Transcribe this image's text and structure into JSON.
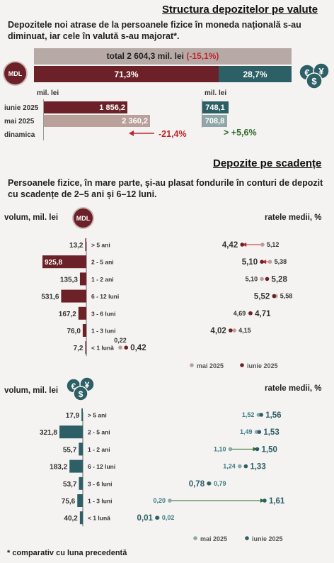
{
  "colors": {
    "mdl": "#6b2127",
    "mdl_light": "#b9a09b",
    "fx": "#2d5f66",
    "fx_light": "#8fa7a8",
    "neg": "#c0272d",
    "pos": "#2c6b2f",
    "gray_bar": "#b7aaa6"
  },
  "section1": {
    "title": "Structura depozitelor pe valute",
    "text": "Depozitele noi atrase de la persoanele fizice în moneda națională s-au diminuat, iar cele în valută s-au majorat*.",
    "total_label": "total 2 604,3 mil. lei",
    "total_change": "(-15,1%)",
    "mdl_share": "71,3%",
    "fx_share": "28,7%",
    "mdl_badge": "MDL",
    "mil_lei_left": "mil. lei",
    "mil_lei_right": "mil. lei",
    "row_labels": [
      "iunie 2025",
      "mai 2025",
      "dinamica"
    ],
    "mdl_june": "1 856,2",
    "mdl_may": "2 360,2",
    "mdl_dyn": "-21,4%",
    "fx_june": "748,1",
    "fx_may": "708,8",
    "fx_dyn": "> +5,6%"
  },
  "section2": {
    "title": "Depozite pe scadențe",
    "text": "Persoanele fizice, în mare parte, și-au plasat fondurile în conturi de depozit cu scadențe de 2–5 ani și 6–12 luni.",
    "volume_label": "volum, mil. lei",
    "rates_label": "ratele medii, %",
    "legend_may": "mai 2025",
    "legend_june": "iunie 2025"
  },
  "chart_data": [
    {
      "type": "bar",
      "title": "MDL volum, mil. lei",
      "categories": [
        "> 5 ani",
        "2 - 5 ani",
        "1 - 2 ani",
        "6 - 12 luni",
        "3 - 6 luni",
        "1 - 3 luni",
        "< 1 lună"
      ],
      "values": [
        13.2,
        925.8,
        135.3,
        531.6,
        167.2,
        76.0,
        7.2
      ],
      "value_labels": [
        "13,2",
        "925,8",
        "135,3",
        "531,6",
        "167,2",
        "76,0",
        "7,2"
      ]
    },
    {
      "type": "scatter",
      "title": "MDL ratele medii, %",
      "categories": [
        "> 5 ani",
        "2 - 5 ani",
        "1 - 2 ani",
        "6 - 12 luni",
        "3 - 6 luni",
        "1 - 3 luni",
        "< 1 lună"
      ],
      "series": [
        {
          "name": "mai 2025",
          "values": [
            5.12,
            5.38,
            5.1,
            5.58,
            4.69,
            4.15,
            0.22
          ],
          "labels": [
            "5,12",
            "5,38",
            "5,10",
            "5,58",
            "4,69",
            "4,15",
            "0,22"
          ]
        },
        {
          "name": "iunie 2025",
          "values": [
            4.42,
            5.1,
            5.28,
            5.52,
            4.71,
            4.02,
            0.42
          ],
          "labels": [
            "4,42",
            "5,10",
            "5,28",
            "5,52",
            "4,71",
            "4,02",
            "0,42"
          ]
        }
      ]
    },
    {
      "type": "bar",
      "title": "Valută volum, mil. lei",
      "categories": [
        "> 5 ani",
        "2 - 5 ani",
        "1 - 2 ani",
        "6 - 12 luni",
        "3 - 6 luni",
        "1 - 3 luni",
        "< 1 lună"
      ],
      "values": [
        17.9,
        321.8,
        55.7,
        183.2,
        53.7,
        75.6,
        40.2
      ],
      "value_labels": [
        "17,9",
        "321,8",
        "55,7",
        "183,2",
        "53,7",
        "75,6",
        "40,2"
      ]
    },
    {
      "type": "scatter",
      "title": "Valută ratele medii, %",
      "categories": [
        "> 5 ani",
        "2 - 5 ani",
        "1 - 2 ani",
        "6 - 12 luni",
        "3 - 6 luni",
        "1 - 3 luni",
        "< 1 lună"
      ],
      "series": [
        {
          "name": "mai 2025",
          "values": [
            1.52,
            1.49,
            1.1,
            1.24,
            0.79,
            0.2,
            0.02
          ],
          "labels": [
            "1,52",
            "1,49",
            "1,10",
            "1,24",
            "0,79",
            "0,20",
            "0,02"
          ]
        },
        {
          "name": "iunie 2025",
          "values": [
            1.56,
            1.53,
            1.5,
            1.33,
            0.78,
            1.61,
            0.01
          ],
          "labels": [
            "1,56",
            "1,53",
            "1,50",
            "1,33",
            "0,78",
            "1,61",
            "0,01"
          ]
        }
      ]
    }
  ],
  "footnote": "* comparativ cu luna precedentă"
}
